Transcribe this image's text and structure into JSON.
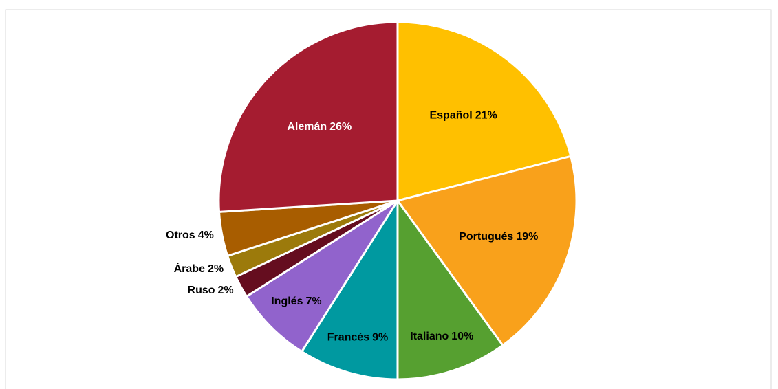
{
  "chart_data": {
    "type": "pie",
    "categories": [
      "Español",
      "Portugués",
      "Italiano",
      "Francés",
      "Inglés",
      "Ruso",
      "Árabe",
      "Otros",
      "Alemán"
    ],
    "values": [
      21,
      19,
      10,
      9,
      7,
      2,
      2,
      4,
      26
    ],
    "value_labels": [
      "21%",
      "19%",
      "10%",
      "9%",
      "7%",
      "2%",
      "2%",
      "4%",
      "26%"
    ],
    "colors": [
      "#ffc000",
      "#f9a11b",
      "#56a030",
      "#0099a0",
      "#9163cc",
      "#650d1f",
      "#9c7a0b",
      "#a85d00",
      "#a51c30"
    ]
  }
}
